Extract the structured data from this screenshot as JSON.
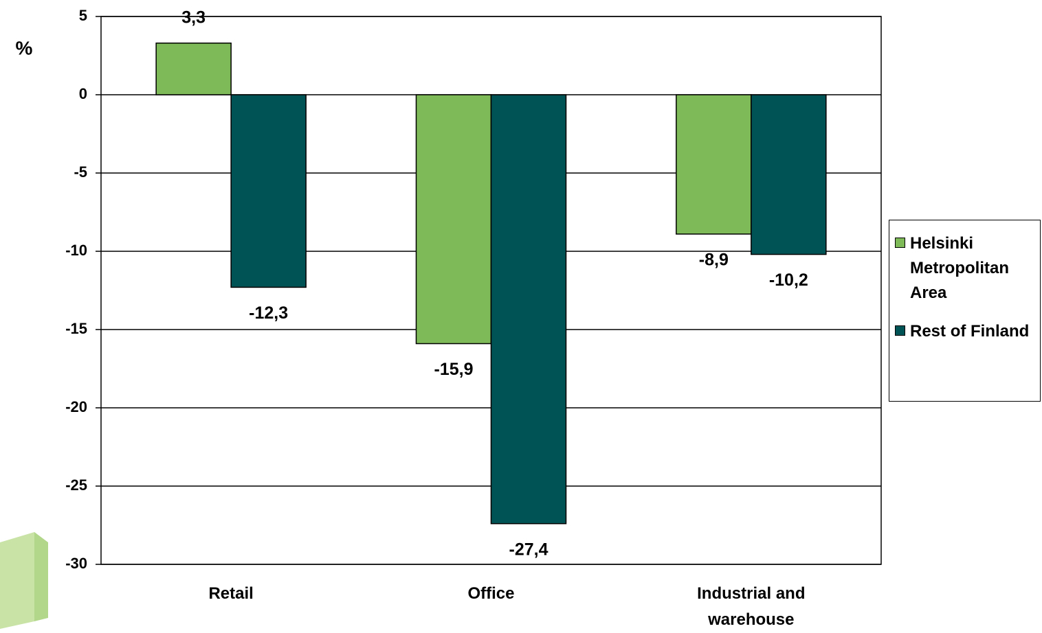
{
  "chart_data": {
    "type": "bar",
    "y_label": "%",
    "categories": [
      "Retail",
      "Office",
      "Industrial and warehouse"
    ],
    "series": [
      {
        "name": "Helsinki Metropolitan Area",
        "color": "#7fba58",
        "values": [
          3.3,
          -15.9,
          -8.9
        ],
        "value_labels": [
          "3,3",
          "-15,9",
          "-8,9"
        ]
      },
      {
        "name": "Rest of Finland",
        "color": "#005355",
        "values": [
          -12.3,
          -27.4,
          -10.2
        ],
        "value_labels": [
          "-12,3",
          "-27,4",
          "-10,2"
        ]
      }
    ],
    "ylim": [
      -30,
      5
    ],
    "yticks": [
      -30,
      -25,
      -20,
      -15,
      -10,
      -5,
      0,
      5
    ],
    "grid": true,
    "legend": "right"
  }
}
